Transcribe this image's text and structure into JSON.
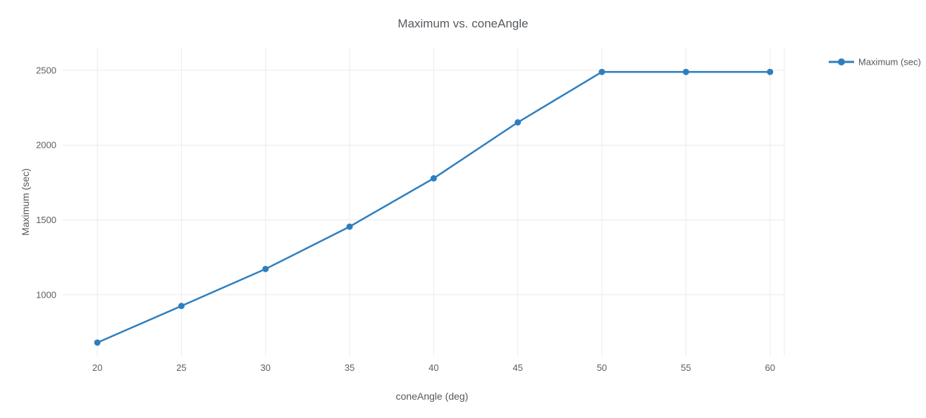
{
  "chart_data": {
    "type": "line",
    "title": "Maximum vs. coneAngle",
    "xlabel": "coneAngle (deg)",
    "ylabel": "Maximum (sec)",
    "x": [
      20,
      25,
      30,
      35,
      40,
      45,
      50,
      55,
      60
    ],
    "series": [
      {
        "name": "Maximum (sec)",
        "values": [
          680,
          925,
          1172,
          1455,
          1778,
          2152,
          2489,
          2489,
          2489
        ]
      }
    ],
    "x_tick_labels": [
      "20",
      "25",
      "30",
      "35",
      "40",
      "45",
      "50",
      "55",
      "60"
    ],
    "y_ticks": [
      1000,
      1500,
      2000,
      2500
    ],
    "y_tick_labels": [
      "1000",
      "1500",
      "2000",
      "2500"
    ],
    "xlim": [
      17.9,
      60.85
    ],
    "ylim": [
      590,
      2650
    ],
    "grid": true,
    "legend_position": "outside-top-right",
    "marker": "circle",
    "line_style": "solid",
    "colors": {
      "line": "#2e7ebf",
      "marker": "#2e7ebf",
      "grid": "#ebebeb",
      "text": "#55595e",
      "background": "#ffffff"
    }
  }
}
